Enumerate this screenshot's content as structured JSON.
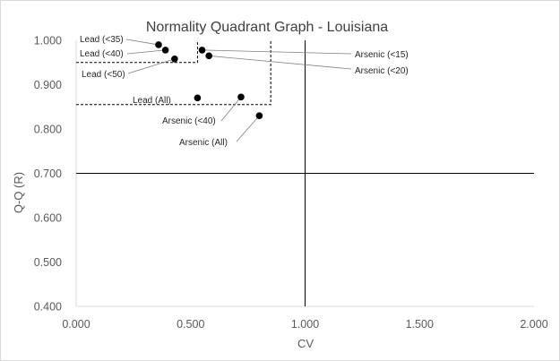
{
  "chart_data": {
    "type": "scatter",
    "title": "Normality Quadrant Graph - Louisiana",
    "xlabel": "CV",
    "ylabel": "Q-Q (R)",
    "xlim": [
      0,
      2
    ],
    "ylim": [
      0.4,
      1.0
    ],
    "x_ticks": [
      "0.000",
      "0.500",
      "1.000",
      "1.500",
      "2.000"
    ],
    "y_ticks": [
      "0.400",
      "0.500",
      "0.600",
      "0.700",
      "0.800",
      "0.900",
      "1.000"
    ],
    "quadrant_lines": {
      "x": 1.0,
      "y": 0.7
    },
    "points": [
      {
        "label": "Lead (<35)",
        "x": 0.36,
        "y": 0.99
      },
      {
        "label": "Lead (<40)",
        "x": 0.39,
        "y": 0.978
      },
      {
        "label": "Lead (<50)",
        "x": 0.43,
        "y": 0.958
      },
      {
        "label": "Lead (All)",
        "x": 0.53,
        "y": 0.87
      },
      {
        "label": "Arsenic (<15)",
        "x": 0.55,
        "y": 0.978
      },
      {
        "label": "Arsenic (<20)",
        "x": 0.58,
        "y": 0.965
      },
      {
        "label": "Arsenic (<40)",
        "x": 0.72,
        "y": 0.872
      },
      {
        "label": "Arsenic (All)",
        "x": 0.8,
        "y": 0.83
      }
    ],
    "reference_box_lower": {
      "x": [
        0,
        0.85
      ],
      "y": 0.855
    },
    "reference_box_upper": {
      "x": [
        0,
        0.53
      ],
      "y": 0.95
    },
    "colors": {
      "marker": "#000000",
      "axis": "#000000",
      "grid_frame": "#d9d9d9"
    },
    "grid": false,
    "legend": "none"
  }
}
